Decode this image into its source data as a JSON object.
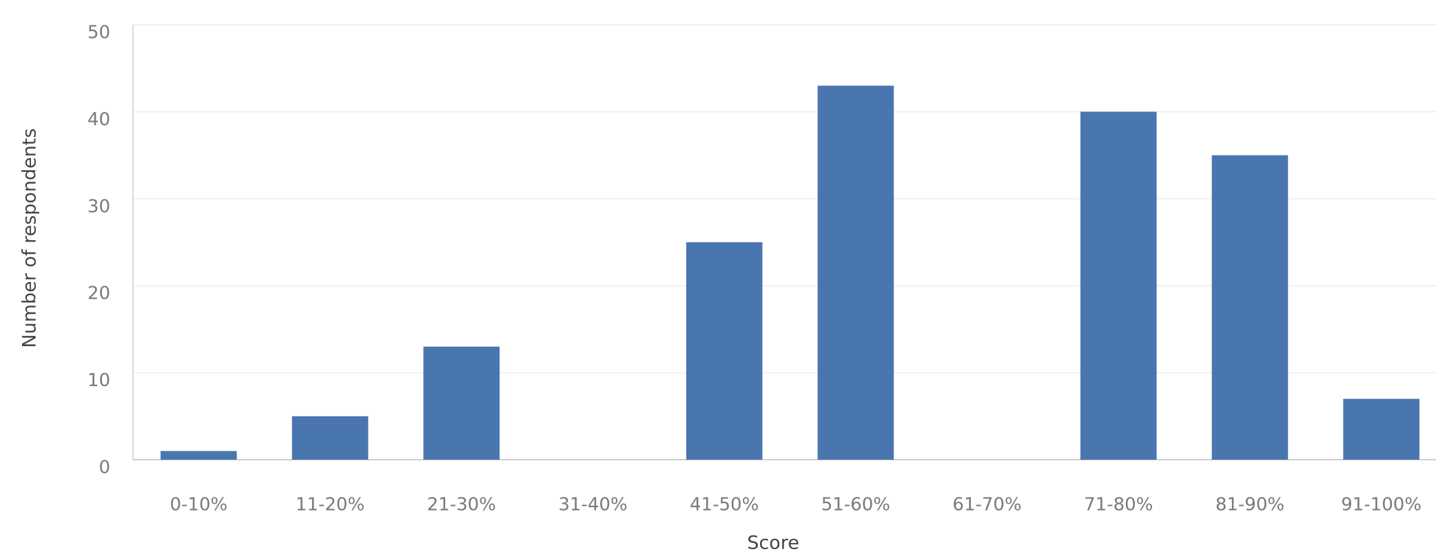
{
  "chart_data": {
    "type": "bar",
    "x_label": "Score",
    "y_label": "Number of respondents",
    "categories": [
      "0-10%",
      "11-20%",
      "21-30%",
      "31-40%",
      "41-50%",
      "51-60%",
      "61-70%",
      "71-80%",
      "81-90%",
      "91-100%"
    ],
    "values": [
      1,
      5,
      13,
      0,
      25,
      43,
      0,
      40,
      35,
      7
    ],
    "color": "#4a76b0",
    "ylim": [
      0,
      50
    ],
    "yticks": [
      0,
      10,
      20,
      30,
      40,
      50
    ],
    "grid": true
  }
}
